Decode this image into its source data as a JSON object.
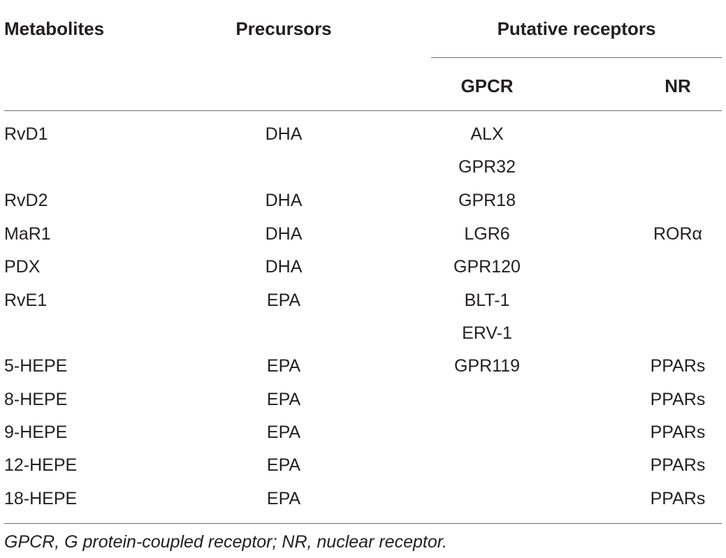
{
  "table": {
    "headers": {
      "metabolites": "Metabolites",
      "precursors": "Precursors",
      "putative_receptors": "Putative receptors",
      "gpcr": "GPCR",
      "nr": "NR"
    },
    "rows": [
      {
        "metabolite": "RvD1",
        "precursor": "DHA",
        "gpcr": "ALX",
        "nr": ""
      },
      {
        "metabolite": "",
        "precursor": "",
        "gpcr": "GPR32",
        "nr": ""
      },
      {
        "metabolite": "RvD2",
        "precursor": "DHA",
        "gpcr": "GPR18",
        "nr": ""
      },
      {
        "metabolite": "MaR1",
        "precursor": "DHA",
        "gpcr": "LGR6",
        "nr": "RORα"
      },
      {
        "metabolite": "PDX",
        "precursor": "DHA",
        "gpcr": "GPR120",
        "nr": ""
      },
      {
        "metabolite": "RvE1",
        "precursor": "EPA",
        "gpcr": "BLT-1",
        "nr": ""
      },
      {
        "metabolite": "",
        "precursor": "",
        "gpcr": "ERV-1",
        "nr": ""
      },
      {
        "metabolite": "5-HEPE",
        "precursor": "EPA",
        "gpcr": "GPR119",
        "nr": "PPARs"
      },
      {
        "metabolite": "8-HEPE",
        "precursor": "EPA",
        "gpcr": "",
        "nr": "PPARs"
      },
      {
        "metabolite": "9-HEPE",
        "precursor": "EPA",
        "gpcr": "",
        "nr": "PPARs"
      },
      {
        "metabolite": "12-HEPE",
        "precursor": "EPA",
        "gpcr": "",
        "nr": "PPARs"
      },
      {
        "metabolite": "18-HEPE",
        "precursor": "EPA",
        "gpcr": "",
        "nr": "PPARs"
      }
    ],
    "footnote": "GPCR, G protein-coupled receptor; NR, nuclear receptor."
  }
}
